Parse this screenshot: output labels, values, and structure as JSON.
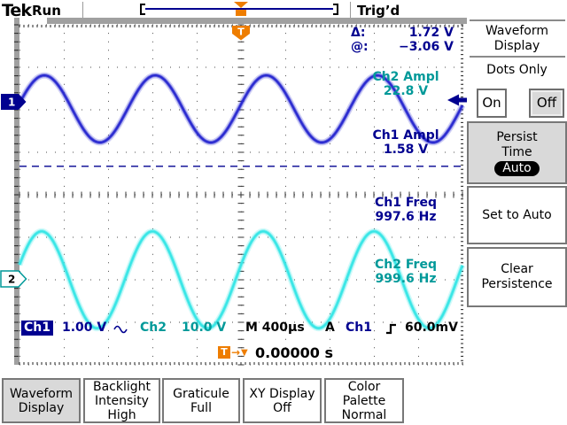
{
  "colors": {
    "navy": "#000090",
    "ch1_trace": "#2a2ad0",
    "ch2_trace": "#38e6e6",
    "ch2_text": "#009999",
    "orange": "#ee7d00",
    "selected_gray": "#d9d9d9",
    "frame_gray": "#a0a0a0"
  },
  "header": {
    "logo": "Tek",
    "acq_status": "Run",
    "trigger_status": "Trig’d"
  },
  "markers": {
    "ch1": "1",
    "ch2": "2",
    "trigger_flag": "T"
  },
  "measurements": {
    "rows": [
      {
        "label": "Δ:",
        "value": "1.72 V"
      },
      {
        "label": "@:",
        "value": "−3.06 V"
      }
    ]
  },
  "readouts": {
    "ch2_ampl": {
      "label": "Ch2 Ampl",
      "value": "22.8 V"
    },
    "ch1_ampl": {
      "label": "Ch1 Ampl",
      "value": "1.58 V"
    },
    "ch1_freq": {
      "label": "Ch1 Freq",
      "value": "997.6 Hz"
    },
    "ch2_freq": {
      "label": "Ch2 Freq",
      "value": "999.6 Hz"
    }
  },
  "status_bar": {
    "ch1_label": "Ch1",
    "ch1_scale": "1.00 V",
    "coupling_icon": "sine-wave-icon",
    "ch2_label": "Ch2",
    "ch2_scale": "10.0 V",
    "timebase": "M 400µs",
    "acquire_mode": "A",
    "trig_source": "Ch1",
    "slope_icon": "rising-edge-icon",
    "trig_level": "60.0mV"
  },
  "trigger_time": {
    "icon": "trigger-position-icon",
    "flag": "T",
    "arrow": "→",
    "pointer": "▼",
    "value": "0.00000 s"
  },
  "side_menu": {
    "title_line1": "Waveform",
    "title_line2": "Display",
    "dots_only_label": "Dots Only",
    "on_label": "On",
    "off_label": "Off",
    "persist_line1": "Persist",
    "persist_line2": "Time",
    "persist_value": "Auto",
    "set_to_auto": "Set to Auto",
    "clear_line1": "Clear",
    "clear_line2": "Persistence"
  },
  "bottom_menu": [
    {
      "lines": [
        "Waveform",
        "Display"
      ],
      "selected": true
    },
    {
      "lines": [
        "Backlight",
        "Intensity",
        "High"
      ],
      "selected": false
    },
    {
      "lines": [
        "Graticule",
        "Full"
      ],
      "selected": false
    },
    {
      "lines": [
        "XY Display",
        "Off"
      ],
      "selected": false
    },
    {
      "lines": [
        "Color",
        "Palette",
        "Normal"
      ],
      "selected": false
    }
  ],
  "chart_data": {
    "type": "line",
    "title": "Oscilloscope waveform display",
    "x_axis": {
      "divisions": 10,
      "time_per_div_s": 0.0004,
      "time_per_div_label": "400µs"
    },
    "y_axis": {
      "divisions": 8
    },
    "grid": "dotted full graticule",
    "series": [
      {
        "name": "Ch1",
        "trace_color": "#2a2ad0",
        "volts_per_div": 1.0,
        "amplitude_v": 1.58,
        "frequency_hz": 997.6,
        "center_div_from_top": 1.98,
        "peak_at_div": 0.56,
        "measured": {
          "amplitude": "1.58 V",
          "frequency": "997.6 Hz"
        }
      },
      {
        "name": "Ch2",
        "trace_color": "#38e6e6",
        "volts_per_div": 10.0,
        "amplitude_v": 22.8,
        "frequency_hz": 999.6,
        "center_div_from_top": 6.0,
        "peak_at_div": 0.5,
        "measured": {
          "amplitude": "22.8 V",
          "frequency": "999.6 Hz"
        }
      }
    ],
    "cursors": {
      "delta": "1.72 V",
      "at": "−3.06 V",
      "cursor_line_div_from_top": 3.33
    },
    "trigger": {
      "status": "Trig’d",
      "source": "Ch1",
      "slope": "rising",
      "level": "60.0mV",
      "position_s": "0.00000 s",
      "level_arrow_div_from_top": 1.77,
      "flag_div_from_left": 5.0
    }
  }
}
